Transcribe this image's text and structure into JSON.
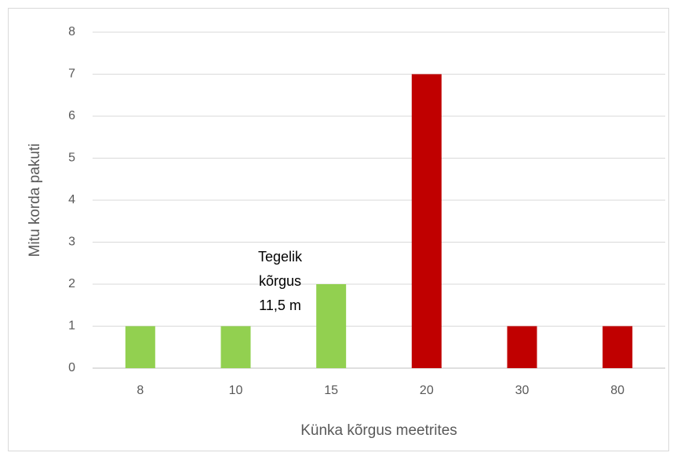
{
  "chart_data": {
    "type": "bar",
    "categories": [
      "8",
      "10",
      "15",
      "20",
      "30",
      "80"
    ],
    "values": [
      1,
      1,
      2,
      7,
      1,
      1
    ],
    "colors": [
      "#92d050",
      "#92d050",
      "#92d050",
      "#c00000",
      "#c00000",
      "#c00000"
    ],
    "ylim": [
      0,
      8
    ],
    "yticks": [
      0,
      1,
      2,
      3,
      4,
      5,
      6,
      7,
      8
    ],
    "grid": true,
    "xlabel": "Künka kõrgus meetrites",
    "ylabel": "Mitu korda pakuti",
    "annotation": [
      "Tegelik",
      "kõrgus",
      "11,5 m"
    ]
  }
}
